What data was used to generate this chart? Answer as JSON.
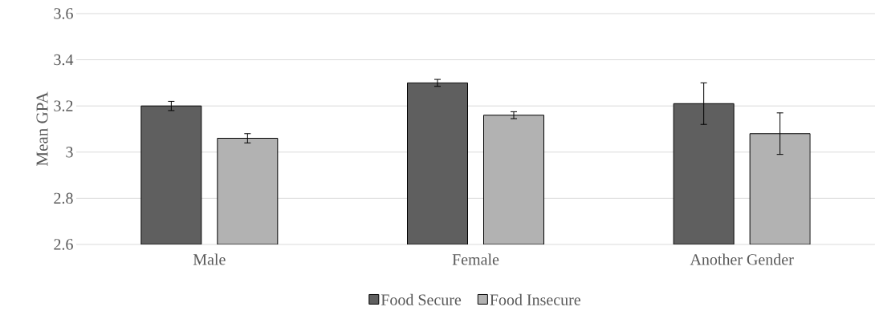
{
  "chart_data": {
    "type": "bar",
    "ylabel": "Mean GPA",
    "categories": [
      "Male",
      "Female",
      "Another Gender"
    ],
    "series": [
      {
        "name": "Food Secure",
        "color": "#5f5f5f",
        "values": [
          3.2,
          3.3,
          3.21
        ],
        "errors": [
          0.02,
          0.015,
          0.09
        ]
      },
      {
        "name": "Food Insecure",
        "color": "#b2b2b2",
        "values": [
          3.06,
          3.16,
          3.08
        ],
        "errors": [
          0.02,
          0.015,
          0.09
        ]
      }
    ],
    "ylim": [
      2.6,
      3.6
    ],
    "yticks": [
      2.6,
      2.8,
      3,
      3.2,
      3.4,
      3.6
    ],
    "grid": "y",
    "legend": "bottom"
  }
}
